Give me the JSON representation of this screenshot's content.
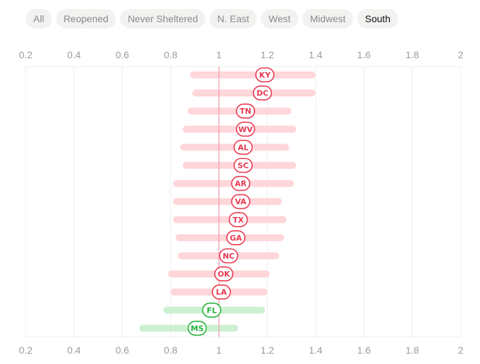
{
  "filters": {
    "items": [
      {
        "id": "all",
        "label": "All"
      },
      {
        "id": "reopened",
        "label": "Reopened"
      },
      {
        "id": "never-sheltered",
        "label": "Never Sheltered"
      },
      {
        "id": "n-east",
        "label": "N. East"
      },
      {
        "id": "west",
        "label": "West"
      },
      {
        "id": "midwest",
        "label": "Midwest"
      },
      {
        "id": "south",
        "label": "South"
      }
    ],
    "active": "south"
  },
  "colors": {
    "above_bar": "#ffd6d9",
    "above_stroke": "#e8384f",
    "below_bar": "#cdf0d2",
    "below_stroke": "#21b33b",
    "reference_line": "#f29aa6",
    "grid": "#ececec",
    "tick": "#9a9a9a"
  },
  "chart_data": {
    "type": "range-dot",
    "xlim": [
      0.2,
      2
    ],
    "xticks": [
      "0.2",
      "0.4",
      "0.6",
      "0.8",
      "1",
      "1.2",
      "1.4",
      "1.6",
      "1.8",
      "2"
    ],
    "reference": 1,
    "axes_top_bottom": true,
    "series": [
      {
        "state": "KY",
        "low": 0.88,
        "high": 1.4,
        "value": 1.19
      },
      {
        "state": "DC",
        "low": 0.89,
        "high": 1.4,
        "value": 1.18
      },
      {
        "state": "TN",
        "low": 0.87,
        "high": 1.3,
        "value": 1.11
      },
      {
        "state": "WV",
        "low": 0.85,
        "high": 1.32,
        "value": 1.11
      },
      {
        "state": "AL",
        "low": 0.84,
        "high": 1.29,
        "value": 1.1
      },
      {
        "state": "SC",
        "low": 0.85,
        "high": 1.32,
        "value": 1.1
      },
      {
        "state": "AR",
        "low": 0.81,
        "high": 1.31,
        "value": 1.09
      },
      {
        "state": "VA",
        "low": 0.81,
        "high": 1.26,
        "value": 1.09
      },
      {
        "state": "TX",
        "low": 0.81,
        "high": 1.28,
        "value": 1.08
      },
      {
        "state": "GA",
        "low": 0.82,
        "high": 1.27,
        "value": 1.07
      },
      {
        "state": "NC",
        "low": 0.83,
        "high": 1.25,
        "value": 1.04
      },
      {
        "state": "OK",
        "low": 0.79,
        "high": 1.21,
        "value": 1.02
      },
      {
        "state": "LA",
        "low": 0.8,
        "high": 1.2,
        "value": 1.01
      },
      {
        "state": "FL",
        "low": 0.77,
        "high": 1.19,
        "value": 0.97
      },
      {
        "state": "MS",
        "low": 0.67,
        "high": 1.08,
        "value": 0.91
      }
    ]
  }
}
